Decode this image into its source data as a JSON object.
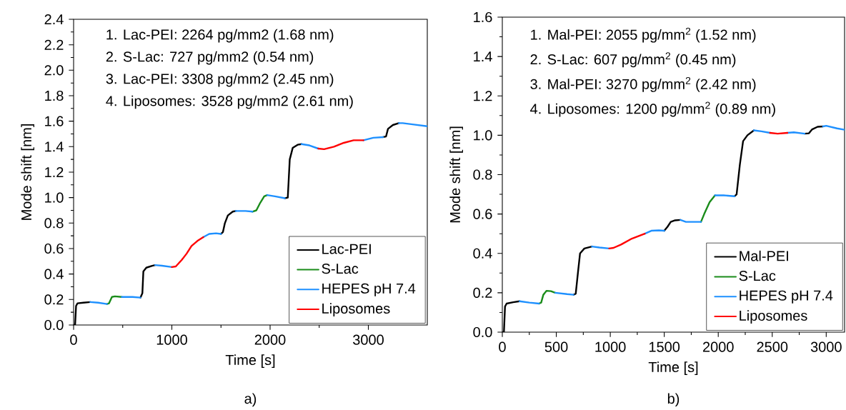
{
  "chart_data": [
    {
      "type": "line",
      "xlabel": "Time [s]",
      "ylabel": "Mode shift [nm]",
      "xlim": [
        0,
        3600
      ],
      "ylim": [
        0,
        2.4
      ],
      "xticks": [
        0,
        1000,
        2000,
        3000
      ],
      "yticks": [
        {
          "value": 0,
          "label": "0.0"
        },
        {
          "value": 0.2,
          "label": "0.2"
        },
        {
          "value": 0.4,
          "label": "0.4"
        },
        {
          "value": 0.6,
          "label": "0.6"
        },
        {
          "value": 0.8,
          "label": "0.8"
        },
        {
          "value": 1.0,
          "label": "1.0"
        },
        {
          "value": 1.2,
          "label": "1.2"
        },
        {
          "value": 1.4,
          "label": "1.4"
        },
        {
          "value": 1.6,
          "label": "1.6"
        },
        {
          "value": 1.8,
          "label": "1.8"
        },
        {
          "value": 2.0,
          "label": "2.0"
        },
        {
          "value": 2.2,
          "label": "2.2"
        },
        {
          "value": 2.4,
          "label": "2.4"
        }
      ],
      "legend": "bottom right",
      "annotations": [
        "1. Lac-PEI: 2264 pg/mm2 (1.68 nm)",
        "2. S-Lac: 727 pg/mm2 (0.54 nm)",
        "3. Lac-PEI: 3308 pg/mm2 (2.45 nm)",
        "4. Liposomes: 3528 pg/mm2 (2.61 nm)",
        "a)"
      ],
      "series": [
        {
          "name": "Lac-PEI",
          "color": "#000000",
          "x": [
            0,
            15,
            25,
            40,
            100,
            170,
            null,
            680,
            700,
            710,
            740,
            800,
            830,
            null,
            1500,
            1520,
            1540,
            1570,
            1620,
            1650,
            null,
            2150,
            2180,
            2200,
            2230,
            2280,
            2320,
            null,
            3150,
            3180,
            3200,
            3250,
            3310
          ],
          "values": [
            0,
            0,
            0.15,
            0.17,
            0.175,
            0.18,
            null,
            0.215,
            0.25,
            0.42,
            0.45,
            0.465,
            0.47,
            null,
            0.715,
            0.73,
            0.8,
            0.86,
            0.89,
            0.895,
            null,
            0.995,
            1.0,
            1.3,
            1.39,
            1.415,
            1.42,
            null,
            1.475,
            1.48,
            1.54,
            1.57,
            1.585
          ]
        },
        {
          "name": "S-Lac",
          "color": "#1a8c1a",
          "x": [
            340,
            360,
            390,
            420,
            490,
            null,
            1820,
            1860,
            1900,
            1940,
            1970
          ],
          "values": [
            0.165,
            0.17,
            0.22,
            0.225,
            0.22,
            null,
            0.89,
            0.9,
            0.96,
            1.01,
            1.02
          ]
        },
        {
          "name": "HEPES pH 7.4",
          "color": "#1e90ff",
          "x": [
            170,
            250,
            340,
            null,
            490,
            600,
            680,
            null,
            830,
            900,
            1000,
            null,
            1320,
            1380,
            1450,
            1500,
            null,
            1650,
            1750,
            1820,
            null,
            1970,
            2050,
            2150,
            null,
            2320,
            2400,
            2490,
            null,
            2950,
            3050,
            3150,
            null,
            3310,
            3350,
            3450,
            3600
          ],
          "values": [
            0.18,
            0.175,
            0.165,
            null,
            0.22,
            0.22,
            0.215,
            null,
            0.47,
            0.465,
            0.455,
            null,
            0.69,
            0.715,
            0.72,
            0.715,
            null,
            0.895,
            0.895,
            0.89,
            null,
            1.02,
            1.01,
            0.995,
            null,
            1.42,
            1.41,
            1.385,
            null,
            1.45,
            1.47,
            1.475,
            null,
            1.585,
            1.585,
            1.575,
            1.56
          ]
        },
        {
          "name": "Liposomes",
          "color": "#ff0000",
          "x": [
            1000,
            1040,
            1100,
            1150,
            1200,
            1260,
            1320,
            null,
            2490,
            2550,
            2650,
            2750,
            2850,
            2950
          ],
          "values": [
            0.455,
            0.46,
            0.51,
            0.56,
            0.62,
            0.66,
            0.69,
            null,
            1.385,
            1.38,
            1.4,
            1.43,
            1.45,
            1.45
          ]
        }
      ]
    },
    {
      "type": "line",
      "xlabel": "Time [s]",
      "ylabel": "Mode shift [nm]",
      "xlim": [
        0,
        3170
      ],
      "ylim": [
        0,
        1.6
      ],
      "xticks": [
        0,
        500,
        1000,
        1500,
        2000,
        2500,
        3000
      ],
      "yticks": [
        {
          "value": 0,
          "label": "0.0"
        },
        {
          "value": 0.2,
          "label": "0.2"
        },
        {
          "value": 0.4,
          "label": "0.4"
        },
        {
          "value": 0.6,
          "label": "0.6"
        },
        {
          "value": 0.8,
          "label": "0.8"
        },
        {
          "value": 1.0,
          "label": "1.0"
        },
        {
          "value": 1.2,
          "label": "1.2"
        },
        {
          "value": 1.4,
          "label": "1.4"
        },
        {
          "value": 1.6,
          "label": "1.6"
        }
      ],
      "legend": "bottom right",
      "annotations": [
        "1. Mal-PEI: 2055 pg/mm$^{2}$ (1.52 nm)",
        "2. S-Lac: 607 pg/mm$^{2}$ (0.45 nm)",
        "3. Mal-PEI: 3270 pg/mm$^{2}$ (2.42 nm)",
        "4. Liposomes: 1200 pg/mm$^{2}$ (0.89 nm)",
        "b)"
      ],
      "series": [
        {
          "name": "Mal-PEI",
          "color": "#000000",
          "x": [
            0,
            15,
            25,
            40,
            100,
            160,
            null,
            660,
            680,
            700,
            720,
            760,
            830,
            null,
            1500,
            1530,
            1560,
            1600,
            1650,
            null,
            2150,
            2170,
            2200,
            2230,
            2270,
            2330,
            null,
            2800,
            2840,
            2870,
            2920,
            2970
          ],
          "values": [
            0,
            0,
            0.13,
            0.145,
            0.152,
            0.157,
            null,
            0.19,
            0.195,
            0.3,
            0.4,
            0.425,
            0.435,
            null,
            0.515,
            0.535,
            0.56,
            0.568,
            0.57,
            null,
            0.69,
            0.7,
            0.85,
            0.97,
            1.0,
            1.025,
            null,
            1.008,
            1.01,
            1.03,
            1.043,
            1.045
          ]
        },
        {
          "name": "S-Lac",
          "color": "#1a8c1a",
          "x": [
            340,
            360,
            380,
            410,
            450,
            490,
            null,
            1840,
            1870,
            1920,
            1970
          ],
          "values": [
            0.145,
            0.15,
            0.19,
            0.21,
            0.208,
            0.2,
            null,
            0.56,
            0.6,
            0.66,
            0.695
          ]
        },
        {
          "name": "HEPES pH 7.4",
          "color": "#1e90ff",
          "x": [
            160,
            250,
            340,
            null,
            490,
            600,
            660,
            null,
            830,
            900,
            990,
            null,
            1320,
            1380,
            1450,
            1500,
            null,
            1650,
            1700,
            1840,
            null,
            1970,
            2050,
            2150,
            null,
            2330,
            2400,
            2480,
            null,
            2640,
            2700,
            2800,
            null,
            2970,
            3000,
            3100,
            3170
          ],
          "values": [
            0.157,
            0.15,
            0.145,
            null,
            0.2,
            0.193,
            0.19,
            null,
            0.435,
            0.43,
            0.425,
            null,
            0.5,
            0.515,
            0.517,
            0.515,
            null,
            0.57,
            0.56,
            0.56,
            null,
            0.695,
            0.695,
            0.69,
            null,
            1.025,
            1.02,
            1.012,
            null,
            1.012,
            1.015,
            1.008,
            null,
            1.045,
            1.048,
            1.035,
            1.028
          ]
        },
        {
          "name": "Liposomes",
          "color": "#ff0000",
          "x": [
            990,
            1030,
            1100,
            1200,
            1320,
            null,
            2480,
            2550,
            2640
          ],
          "values": [
            0.425,
            0.428,
            0.445,
            0.475,
            0.5,
            null,
            1.012,
            1.008,
            1.012
          ]
        }
      ]
    }
  ]
}
